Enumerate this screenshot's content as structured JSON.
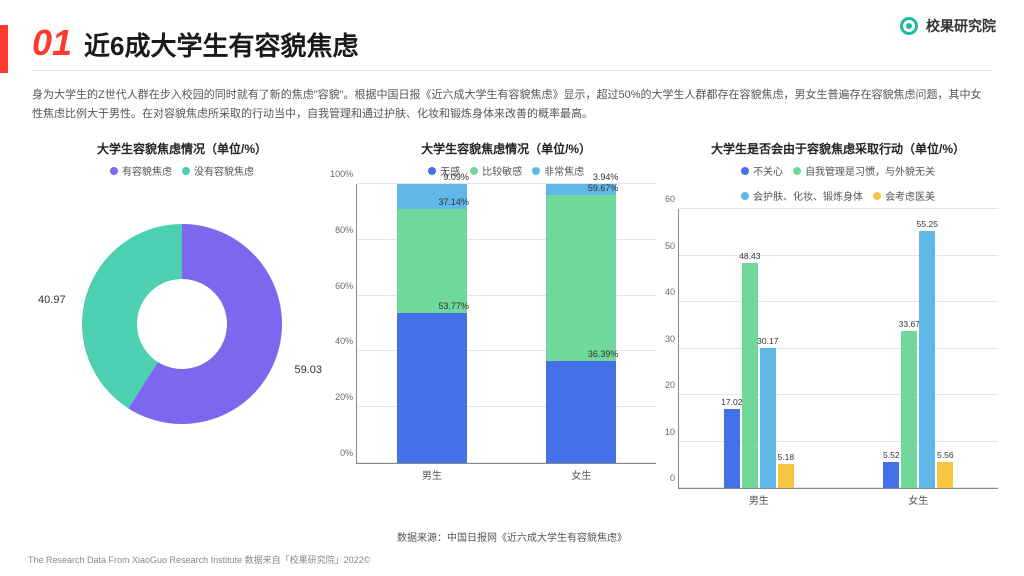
{
  "brand": {
    "name": "校果研究院"
  },
  "header": {
    "number": "01",
    "title": "近6成大学生有容貌焦虑"
  },
  "description": "身为大学生的Z世代人群在步入校园的同时就有了新的焦虑\"容貌\"。根据中国日报《近六成大学生有容貌焦虑》显示，超过50%的大学生人群都存在容貌焦虑，男女生普遍存在容貌焦虑问题，其中女性焦虑比例大于男性。在对容貌焦虑所采取的行动当中，自我管理和通过护肤、化妆和锻炼身体来改善的概率最高。",
  "colors": {
    "purple": "#7b68ee",
    "teal": "#4dd0b1",
    "blue": "#4571e8",
    "lightblue": "#5fb8e8",
    "green": "#6fd89a",
    "yellow": "#f5c542",
    "grid": "#e5e5e5",
    "axis": "#888888"
  },
  "donut": {
    "title": "大学生容貌焦虑情况（单位/%）",
    "legend": [
      {
        "label": "有容貌焦虑",
        "color": "#7b68ee"
      },
      {
        "label": "没有容貌焦虑",
        "color": "#4dd0b1"
      }
    ],
    "slices": [
      {
        "value": 59.03,
        "color": "#7b68ee",
        "label": "59.03"
      },
      {
        "value": 40.97,
        "color": "#4dd0b1",
        "label": "40.97"
      }
    ],
    "inner_radius_pct": 45
  },
  "stacked": {
    "title": "大学生容貌焦虑情况（单位/%）",
    "legend": [
      {
        "label": "无感",
        "color": "#4571e8"
      },
      {
        "label": "比较敏感",
        "color": "#6fd89a"
      },
      {
        "label": "非常焦虑",
        "color": "#5fb8e8"
      }
    ],
    "ylim": [
      0,
      100
    ],
    "ytick_step": 20,
    "categories": [
      "男生",
      "女生"
    ],
    "stacks": [
      [
        {
          "value": 53.77,
          "color": "#4571e8",
          "label": "53.77%"
        },
        {
          "value": 37.14,
          "color": "#6fd89a",
          "label": "37.14%"
        },
        {
          "value": 9.09,
          "color": "#5fb8e8",
          "label": "9.09%"
        }
      ],
      [
        {
          "value": 36.39,
          "color": "#4571e8",
          "label": "36.39%"
        },
        {
          "value": 59.67,
          "color": "#6fd89a",
          "label": "59.67%"
        },
        {
          "value": 3.94,
          "color": "#5fb8e8",
          "label": "3.94%"
        }
      ]
    ]
  },
  "grouped": {
    "title": "大学生是否会由于容貌焦虑采取行动（单位/%）",
    "legend": [
      {
        "label": "不关心",
        "color": "#4571e8"
      },
      {
        "label": "自我管理是习惯，与外貌无关",
        "color": "#6fd89a"
      },
      {
        "label": "会护肤、化妆、锻炼身体",
        "color": "#5fb8e8"
      },
      {
        "label": "会考虑医美",
        "color": "#f5c542"
      }
    ],
    "ylim": [
      0,
      60
    ],
    "ytick_step": 10,
    "categories": [
      "男生",
      "女生"
    ],
    "groups": [
      [
        {
          "value": 17.02,
          "color": "#4571e8"
        },
        {
          "value": 48.43,
          "color": "#6fd89a"
        },
        {
          "value": 30.17,
          "color": "#5fb8e8"
        },
        {
          "value": 5.18,
          "color": "#f5c542"
        }
      ],
      [
        {
          "value": 5.52,
          "color": "#4571e8"
        },
        {
          "value": 33.67,
          "color": "#6fd89a"
        },
        {
          "value": 55.25,
          "color": "#5fb8e8"
        },
        {
          "value": 5.56,
          "color": "#f5c542"
        }
      ]
    ]
  },
  "source": "数据来源：中国日报网《近六成大学生有容貌焦虑》",
  "footer": "The Research Data From XiaoGuo Research Institute 数据来自「校果研究院」2022©"
}
